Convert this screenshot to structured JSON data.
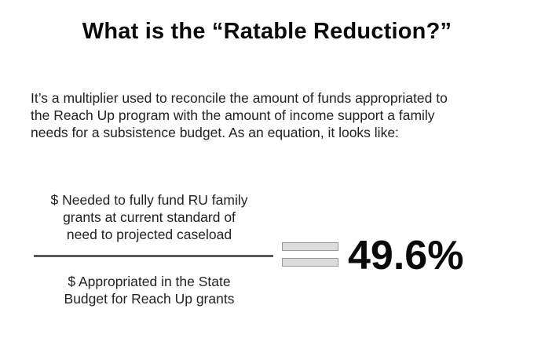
{
  "title": "What is the “Ratable Reduction?”",
  "intro": {
    "lines": [
      "It’s a multiplier used to reconcile the amount of funds appropriated to",
      "the Reach Up program with the amount of income support a family",
      "needs for a subsistence budget. As an equation, it looks like:"
    ]
  },
  "equation": {
    "numerator_lines": [
      "$ Needed to fully fund RU family",
      "grants at current standard of",
      "need to projected caseload"
    ],
    "denominator_lines": [
      "$ Appropriated in the State",
      "Budget for Reach Up grants"
    ],
    "result": "49.6%"
  }
}
